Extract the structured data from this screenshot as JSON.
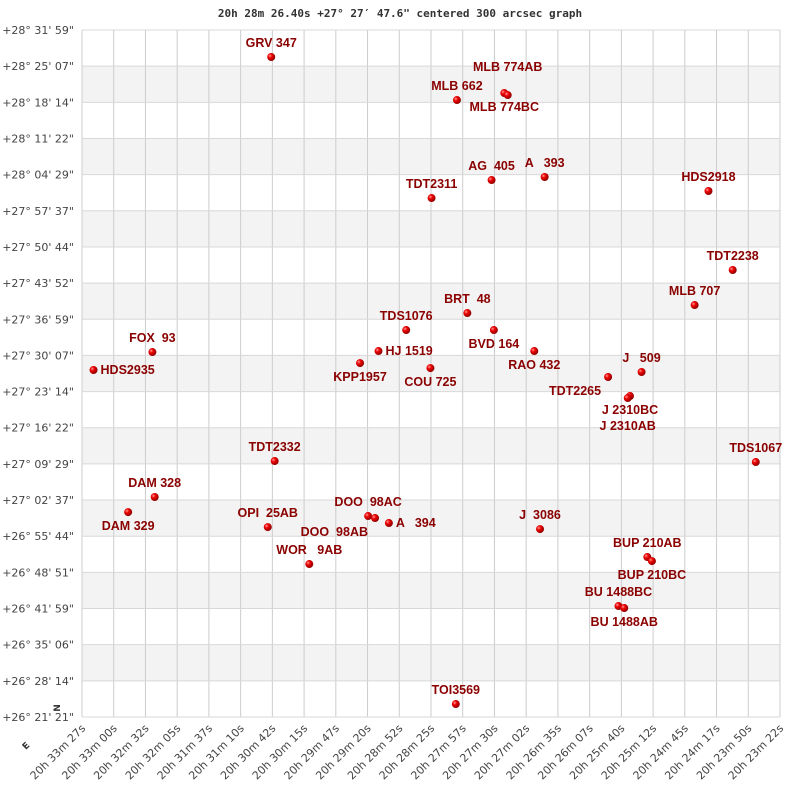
{
  "chart_data": {
    "type": "scatter",
    "title": "20h 28m 26.40s +27° 27′ 47.6\" centered 300 arcsec graph",
    "xlim": [
      "20h 33m 27s",
      "20h 23m 22s"
    ],
    "ylim": [
      "+26° 21' 21\"",
      "+28° 31' 59\""
    ],
    "grid": true,
    "x_tick_labels": [
      "20h 33m 27s",
      "20h 33m 00s",
      "20h 32m 32s",
      "20h 32m 05s",
      "20h 31m 37s",
      "20h 31m 10s",
      "20h 30m 42s",
      "20h 30m 15s",
      "20h 29m 47s",
      "20h 29m 20s",
      "20h 28m 52s",
      "20h 28m 25s",
      "20h 27m 57s",
      "20h 27m 30s",
      "20h 27m 02s",
      "20h 26m 35s",
      "20h 26m 07s",
      "20h 25m 40s",
      "20h 25m 12s",
      "20h 24m 45s",
      "20h 24m 17s",
      "20h 23m 50s",
      "20h 23m 22s"
    ],
    "y_tick_labels": [
      "+28° 31' 59\"",
      "+28° 25' 07\"",
      "+28° 18' 14\"",
      "+28° 11' 22\"",
      "+28° 04' 29\"",
      "+27° 57' 37\"",
      "+27° 50' 44\"",
      "+27° 43' 52\"",
      "+27° 36' 59\"",
      "+27° 30' 07\"",
      "+27° 23' 14\"",
      "+27° 16' 22\"",
      "+27° 09' 29\"",
      "+27° 02' 37\"",
      "+26° 55' 44\"",
      "+26° 48' 51\"",
      "+26° 41' 59\"",
      "+26° 35' 06\"",
      "+26° 28' 14\"",
      "+26° 21' 21\""
    ],
    "compass": {
      "north": "N",
      "east": "E"
    },
    "point_color": "#dd0000",
    "label_color": "#8b0000",
    "points": [
      {
        "name": "GRV 347",
        "ra": "20h 30m 43s",
        "dec": "+28° 26' 51\""
      },
      {
        "name": "MLB 662",
        "ra": "20h 28m 02s",
        "dec": "+28° 18' 40\""
      },
      {
        "name": "MLB 774BC",
        "ra": "20h 27m 21s",
        "dec": "+28° 20' 00\""
      },
      {
        "name": "MLB 774AB",
        "ra": "20h 27m 18s",
        "dec": "+28° 19' 37\""
      },
      {
        "name": "AG  405",
        "ra": "20h 27m 32s",
        "dec": "+28° 03' 27\""
      },
      {
        "name": "A   393",
        "ra": "20h 26m 46s",
        "dec": "+28° 04' 02\""
      },
      {
        "name": "TDT2311",
        "ra": "20h 28m 24s",
        "dec": "+28° 00' 02\""
      },
      {
        "name": "HDS2918",
        "ra": "20h 24m 24s",
        "dec": "+28° 01' 22\""
      },
      {
        "name": "TDT2238",
        "ra": "20h 24m 03s",
        "dec": "+27° 46' 21\""
      },
      {
        "name": "MLB 707",
        "ra": "20h 24m 36s",
        "dec": "+27° 39' 41\""
      },
      {
        "name": "BRT  48",
        "ra": "20h 27m 53s",
        "dec": "+27° 38' 10\""
      },
      {
        "name": "BVD 164",
        "ra": "20h 27m 30s",
        "dec": "+27° 34' 56\""
      },
      {
        "name": "TDS1076",
        "ra": "20h 28m 46s",
        "dec": "+27° 34' 56\""
      },
      {
        "name": "HJ 1519",
        "ra": "20h 29m 10s",
        "dec": "+27° 30' 56\""
      },
      {
        "name": "KPP1957",
        "ra": "20h 29m 26s",
        "dec": "+27° 28' 39\""
      },
      {
        "name": "COU 725",
        "ra": "20h 28m 25s",
        "dec": "+27° 27' 42\""
      },
      {
        "name": "RAO 432",
        "ra": "20h 26m 55s",
        "dec": "+27° 30' 56\""
      },
      {
        "name": "FOX  93",
        "ra": "20h 32m 26s",
        "dec": "+27° 30' 45\""
      },
      {
        "name": "HDS2935",
        "ra": "20h 33m 17s",
        "dec": "+27° 27' 20\""
      },
      {
        "name": "J   509",
        "ra": "20h 25m 22s",
        "dec": "+27° 26' 57\""
      },
      {
        "name": "TDT2265",
        "ra": "20h 25m 51s",
        "dec": "+27° 26' 00\""
      },
      {
        "name": "J 2310BC",
        "ra": "20h 25m 32s",
        "dec": "+27° 22' 23\""
      },
      {
        "name": "J 2310AB",
        "ra": "20h 25m 34s",
        "dec": "+27° 22' 00\""
      },
      {
        "name": "TDT2332",
        "ra": "20h 30m 40s",
        "dec": "+27° 10' 01\""
      },
      {
        "name": "DAM 328",
        "ra": "20h 32m 24s",
        "dec": "+27° 03' 11\""
      },
      {
        "name": "DAM 329",
        "ra": "20h 32m 47s",
        "dec": "+27° 00' 19\""
      },
      {
        "name": "OPI  25AB",
        "ra": "20h 30m 46s",
        "dec": "+26° 57' 28\""
      },
      {
        "name": "WOR   9AB",
        "ra": "20h 30m 10s",
        "dec": "+26° 50' 26\""
      },
      {
        "name": "DOO  98AC",
        "ra": "20h 29m 19s",
        "dec": "+26° 59' 34\""
      },
      {
        "name": "DOO  98AB",
        "ra": "20h 29m 13s",
        "dec": "+26° 59' 11\""
      },
      {
        "name": "A   394",
        "ra": "20h 29m 01s",
        "dec": "+26° 58' 14\""
      },
      {
        "name": "J  3086",
        "ra": "20h 26m 50s",
        "dec": "+26° 57' 05\""
      },
      {
        "name": "BUP 210AB",
        "ra": "20h 25m 17s",
        "dec": "+26° 51' 46\""
      },
      {
        "name": "BUP 210BC",
        "ra": "20h 25m 13s",
        "dec": "+26° 51' 00\""
      },
      {
        "name": "BU 1488BC",
        "ra": "20h 25m 42s",
        "dec": "+26° 42' 27\""
      },
      {
        "name": "BU 1488AB",
        "ra": "20h 25m 37s",
        "dec": "+26° 42' 04\""
      },
      {
        "name": "TDS1067",
        "ra": "20h 23m 43s",
        "dec": "+27° 09' 50\""
      },
      {
        "name": "TOI3569",
        "ra": "20h 28m 03s",
        "dec": "+26° 23' 49\""
      }
    ]
  }
}
